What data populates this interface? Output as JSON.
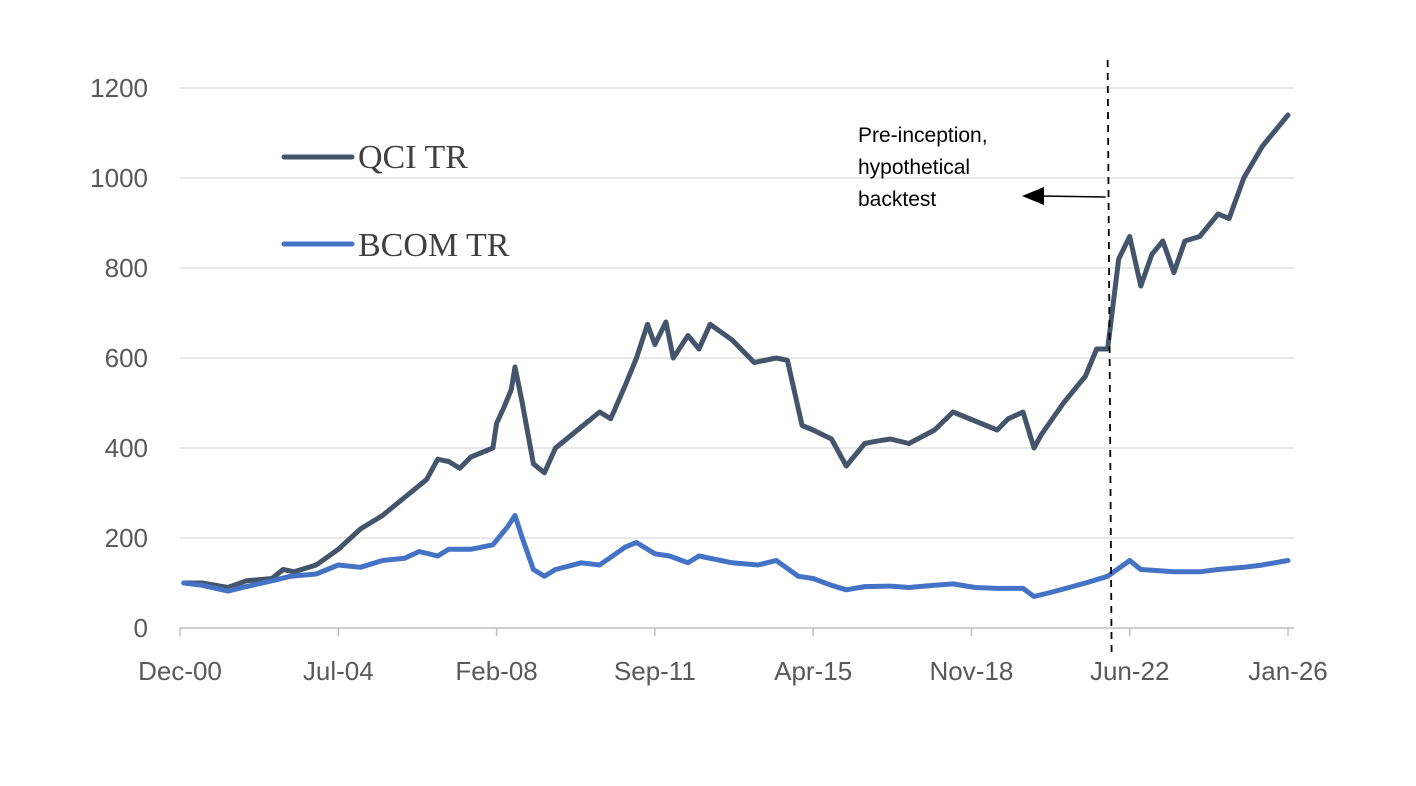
{
  "chart_data": {
    "type": "line",
    "title": "",
    "xlabel": "",
    "ylabel": "",
    "ylim": [
      0,
      1200
    ],
    "xlim": [
      "2000-12",
      "2026-01"
    ],
    "yticks": [
      0,
      200,
      400,
      600,
      800,
      1000,
      1200
    ],
    "xtick_labels": [
      "Dec-00",
      "Jul-04",
      "Feb-08",
      "Sep-11",
      "Apr-15",
      "Nov-18",
      "Jun-22",
      "Jan-26"
    ],
    "xtick_dates": [
      "2000-12",
      "2004-07",
      "2008-02",
      "2011-09",
      "2015-04",
      "2018-11",
      "2022-06",
      "2026-01"
    ],
    "grid": "horizontal",
    "legend_position": "top-left",
    "colors": {
      "QCI TR": "#44546a",
      "BCOM TR": "#4472c4",
      "grid": "#d9d9d9",
      "axis": "#bfbfbf"
    },
    "series": [
      {
        "name": "QCI TR",
        "points": [
          [
            "2001-01",
            100
          ],
          [
            "2001-06",
            100
          ],
          [
            "2002-01",
            90
          ],
          [
            "2002-06",
            105
          ],
          [
            "2003-01",
            110
          ],
          [
            "2003-04",
            130
          ],
          [
            "2003-07",
            125
          ],
          [
            "2004-01",
            140
          ],
          [
            "2004-07",
            175
          ],
          [
            "2005-01",
            220
          ],
          [
            "2005-07",
            250
          ],
          [
            "2006-01",
            290
          ],
          [
            "2006-07",
            330
          ],
          [
            "2006-10",
            375
          ],
          [
            "2007-01",
            370
          ],
          [
            "2007-04",
            355
          ],
          [
            "2007-07",
            380
          ],
          [
            "2008-01",
            400
          ],
          [
            "2008-02",
            455
          ],
          [
            "2008-04",
            490
          ],
          [
            "2008-06",
            530
          ],
          [
            "2008-07",
            580
          ],
          [
            "2008-09",
            500
          ],
          [
            "2008-12",
            365
          ],
          [
            "2009-03",
            345
          ],
          [
            "2009-06",
            400
          ],
          [
            "2009-12",
            440
          ],
          [
            "2010-06",
            480
          ],
          [
            "2010-09",
            465
          ],
          [
            "2011-01",
            540
          ],
          [
            "2011-04",
            600
          ],
          [
            "2011-07",
            675
          ],
          [
            "2011-09",
            630
          ],
          [
            "2011-12",
            680
          ],
          [
            "2012-02",
            600
          ],
          [
            "2012-06",
            650
          ],
          [
            "2012-09",
            620
          ],
          [
            "2012-12",
            675
          ],
          [
            "2013-06",
            640
          ],
          [
            "2013-12",
            590
          ],
          [
            "2014-06",
            600
          ],
          [
            "2014-09",
            595
          ],
          [
            "2015-01",
            450
          ],
          [
            "2015-04",
            440
          ],
          [
            "2015-09",
            420
          ],
          [
            "2016-01",
            360
          ],
          [
            "2016-06",
            410
          ],
          [
            "2016-09",
            415
          ],
          [
            "2017-01",
            420
          ],
          [
            "2017-06",
            410
          ],
          [
            "2018-01",
            440
          ],
          [
            "2018-06",
            480
          ],
          [
            "2018-12",
            460
          ],
          [
            "2019-06",
            440
          ],
          [
            "2019-09",
            465
          ],
          [
            "2020-01",
            480
          ],
          [
            "2020-04",
            400
          ],
          [
            "2020-06",
            430
          ],
          [
            "2020-12",
            500
          ],
          [
            "2021-06",
            560
          ],
          [
            "2021-09",
            620
          ],
          [
            "2021-12",
            620
          ],
          [
            "2022-03",
            820
          ],
          [
            "2022-06",
            870
          ],
          [
            "2022-09",
            760
          ],
          [
            "2022-12",
            830
          ],
          [
            "2023-03",
            860
          ],
          [
            "2023-06",
            790
          ],
          [
            "2023-09",
            860
          ],
          [
            "2024-01",
            870
          ],
          [
            "2024-06",
            920
          ],
          [
            "2024-09",
            910
          ],
          [
            "2025-01",
            1000
          ],
          [
            "2025-06",
            1070
          ],
          [
            "2026-01",
            1140
          ]
        ]
      },
      {
        "name": "BCOM TR",
        "points": [
          [
            "2001-01",
            100
          ],
          [
            "2001-06",
            95
          ],
          [
            "2002-01",
            82
          ],
          [
            "2002-06",
            92
          ],
          [
            "2003-01",
            105
          ],
          [
            "2003-06",
            115
          ],
          [
            "2004-01",
            120
          ],
          [
            "2004-07",
            140
          ],
          [
            "2005-01",
            135
          ],
          [
            "2005-07",
            150
          ],
          [
            "2006-01",
            155
          ],
          [
            "2006-05",
            170
          ],
          [
            "2006-10",
            160
          ],
          [
            "2007-01",
            175
          ],
          [
            "2007-07",
            175
          ],
          [
            "2008-01",
            185
          ],
          [
            "2008-05",
            225
          ],
          [
            "2008-07",
            250
          ],
          [
            "2008-09",
            200
          ],
          [
            "2008-12",
            130
          ],
          [
            "2009-03",
            115
          ],
          [
            "2009-06",
            130
          ],
          [
            "2010-01",
            145
          ],
          [
            "2010-06",
            140
          ],
          [
            "2011-01",
            180
          ],
          [
            "2011-04",
            190
          ],
          [
            "2011-09",
            165
          ],
          [
            "2012-01",
            160
          ],
          [
            "2012-06",
            145
          ],
          [
            "2012-09",
            160
          ],
          [
            "2013-06",
            145
          ],
          [
            "2014-01",
            140
          ],
          [
            "2014-06",
            150
          ],
          [
            "2014-12",
            115
          ],
          [
            "2015-04",
            110
          ],
          [
            "2015-09",
            95
          ],
          [
            "2016-01",
            85
          ],
          [
            "2016-06",
            92
          ],
          [
            "2017-01",
            93
          ],
          [
            "2017-06",
            90
          ],
          [
            "2018-01",
            95
          ],
          [
            "2018-06",
            98
          ],
          [
            "2018-12",
            90
          ],
          [
            "2019-06",
            88
          ],
          [
            "2020-01",
            88
          ],
          [
            "2020-04",
            70
          ],
          [
            "2020-09",
            80
          ],
          [
            "2021-06",
            100
          ],
          [
            "2021-12",
            115
          ],
          [
            "2022-06",
            150
          ],
          [
            "2022-09",
            130
          ],
          [
            "2023-06",
            125
          ],
          [
            "2024-01",
            125
          ],
          [
            "2024-06",
            130
          ],
          [
            "2025-01",
            135
          ],
          [
            "2025-06",
            140
          ],
          [
            "2026-01",
            150
          ]
        ]
      }
    ],
    "annotation": {
      "lines": [
        "Pre-inception,",
        "hypothetical",
        "backtest"
      ],
      "divider_date": "2021-12",
      "arrow_direction": "left"
    }
  }
}
